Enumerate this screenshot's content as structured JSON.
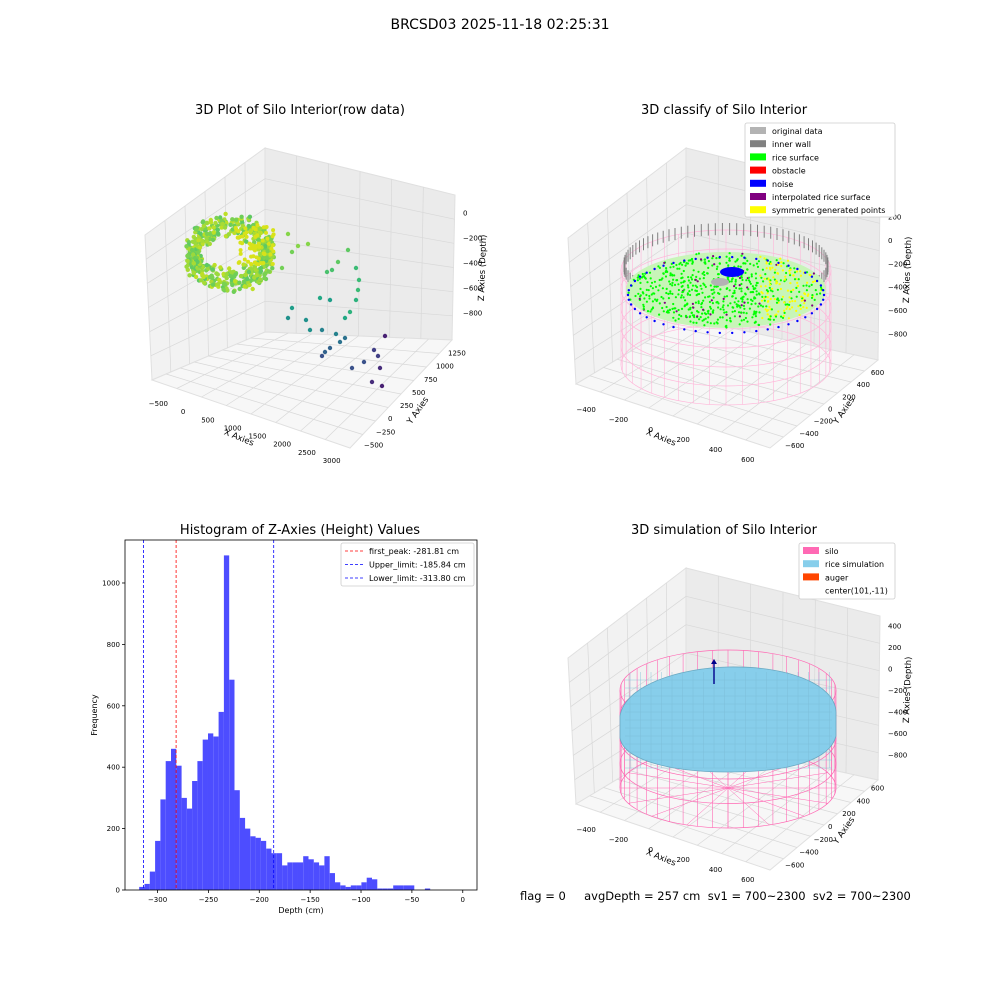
{
  "figure": {
    "suptitle": "BRCSD03 2025-11-18 02:25:31",
    "footer": "flag = 0     avgDepth = 257 cm  sv1 = 700~2300  sv2 = 700~2300"
  },
  "colors": {
    "original_data": "#b3b3b3",
    "inner_wall": "#808080",
    "rice_surface": "#00ff00",
    "obstacle": "#ff0000",
    "noise": "#0000ff",
    "interpolated_rice_surface": "#800080",
    "symmetric_generated_points": "#ffff00",
    "silo": "#ff69b4",
    "rice_simulation": "#87ceeb",
    "auger": "#ff4500",
    "hist_bar": "#4d4dff",
    "peak_line": "#ff0000",
    "limit_line": "#0000ff"
  },
  "chart_data": [
    {
      "id": "raw",
      "type": "scatter",
      "title": "3D Plot of Silo Interior(row data)",
      "xlabel": "X Axies",
      "ylabel": "Y Axies",
      "zlabel": "Z Axies (Depth)",
      "x_ticks": [
        "−500",
        "0",
        "500",
        "1000",
        "1500",
        "2000",
        "2500",
        "3000"
      ],
      "y_ticks": [
        "−500",
        "−250",
        "0",
        "250",
        "500",
        "750",
        "1000",
        "1250"
      ],
      "z_ticks": [
        "0",
        "−200",
        "−400",
        "−600",
        "−800"
      ]
    },
    {
      "id": "classify",
      "type": "scatter",
      "title": "3D classify of Silo Interior",
      "xlabel": "X Axies",
      "ylabel": "Y Axies",
      "zlabel": "Z Axies (Depth)",
      "x_ticks": [
        "−400",
        "−200",
        "0",
        "200",
        "400",
        "600"
      ],
      "y_ticks": [
        "−600",
        "−400",
        "−200",
        "0",
        "200",
        "400",
        "600"
      ],
      "z_ticks": [
        "200",
        "0",
        "−200",
        "−400",
        "−600",
        "−800"
      ],
      "legend": [
        "original data",
        "inner wall",
        "rice surface",
        "obstacle",
        "noise",
        "interpolated rice surface",
        "symmetric generated points"
      ]
    },
    {
      "id": "histogram",
      "type": "bar",
      "title": "Histogram of Z-Axies (Height) Values",
      "xlabel": "Depth (cm)",
      "ylabel": "Frequency",
      "xlim": [
        -332,
        14
      ],
      "ylim": [
        0,
        1140
      ],
      "bin_start": -318,
      "bin_width": 5.2,
      "values": [
        10,
        20,
        60,
        160,
        295,
        420,
        460,
        405,
        300,
        265,
        355,
        420,
        490,
        510,
        500,
        580,
        1090,
        685,
        325,
        235,
        200,
        175,
        170,
        160,
        135,
        120,
        120,
        80,
        90,
        90,
        90,
        110,
        100,
        90,
        80,
        110,
        55,
        25,
        15,
        10,
        15,
        15,
        25,
        40,
        35,
        5,
        5,
        5,
        15,
        15,
        15,
        15,
        0,
        0,
        5,
        0
      ],
      "x_ticks": [
        "−300",
        "−250",
        "−200",
        "−150",
        "−100",
        "−50",
        "0"
      ],
      "x_tick_values": [
        -300,
        -250,
        -200,
        -150,
        -100,
        -50,
        0
      ],
      "y_ticks": [
        "0",
        "200",
        "400",
        "600",
        "800",
        "1000"
      ],
      "y_tick_values": [
        0,
        200,
        400,
        600,
        800,
        1000
      ],
      "vlines": [
        {
          "label": "first_peak: -281.81 cm",
          "x": -281.81,
          "color": "red"
        },
        {
          "label": "Upper_limit: -185.84 cm",
          "x": -185.84,
          "color": "blue"
        },
        {
          "label": "Lower_limit: -313.80 cm",
          "x": -313.8,
          "color": "blue"
        }
      ]
    },
    {
      "id": "simulation",
      "type": "scatter",
      "title": "3D simulation of Silo Interior",
      "xlabel": "X Axies",
      "ylabel": "Y Axies",
      "zlabel": "Z Axies (Depth)",
      "x_ticks": [
        "−400",
        "−200",
        "0",
        "200",
        "400",
        "600"
      ],
      "y_ticks": [
        "−600",
        "−400",
        "−200",
        "0",
        "200",
        "400",
        "600"
      ],
      "z_ticks": [
        "400",
        "200",
        "0",
        "−200",
        "−400",
        "−600",
        "−800"
      ],
      "legend": [
        "silo",
        "rice simulation",
        "auger",
        "center(101,-11)"
      ]
    }
  ]
}
